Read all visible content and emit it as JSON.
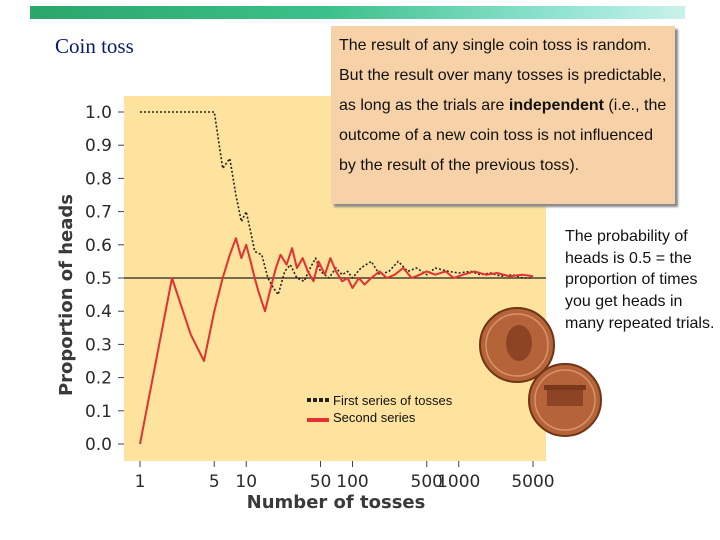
{
  "slide": {
    "title": "Coin toss",
    "info_before": "The result of any single coin toss is random.  But the result over many tosses is predictable, as long as the trials are ",
    "info_bold": "independent",
    "info_after": " (i.e., the outcome of a new coin toss is not influenced by the result of the previous toss).",
    "side_note": "The probability of heads is 0.5 = the proportion of times you get heads in many repeated trials."
  },
  "colors": {
    "panel_background": "#fde39e",
    "first_series": "#222222",
    "second_series": "#e03232",
    "reference_line": "#222222",
    "info_box": "#f7d2a8"
  },
  "chart_data": {
    "type": "line",
    "xscale": "log",
    "xlabel": "Number of tosses",
    "ylabel": "Proportion of heads",
    "x_ticks": [
      1,
      5,
      10,
      50,
      100,
      500,
      1000,
      5000
    ],
    "y_ticks": [
      "0.0",
      "0.1",
      "0.2",
      "0.3",
      "0.4",
      "0.5",
      "0.6",
      "0.7",
      "0.8",
      "0.9",
      "1.0"
    ],
    "xlim": [
      1,
      5000
    ],
    "ylim": [
      0,
      1
    ],
    "reference_y": 0.5,
    "legend": [
      "First series of tosses",
      "Second series"
    ],
    "series": [
      {
        "name": "First series of tosses",
        "style": "dotted",
        "points": [
          [
            1,
            1.0
          ],
          [
            2,
            1.0
          ],
          [
            3,
            1.0
          ],
          [
            4,
            1.0
          ],
          [
            5,
            1.0
          ],
          [
            6,
            0.83
          ],
          [
            7,
            0.86
          ],
          [
            8,
            0.75
          ],
          [
            9,
            0.67
          ],
          [
            10,
            0.7
          ],
          [
            11,
            0.64
          ],
          [
            12,
            0.58
          ],
          [
            14,
            0.57
          ],
          [
            16,
            0.5
          ],
          [
            18,
            0.47
          ],
          [
            20,
            0.45
          ],
          [
            23,
            0.52
          ],
          [
            26,
            0.54
          ],
          [
            30,
            0.5
          ],
          [
            35,
            0.49
          ],
          [
            40,
            0.53
          ],
          [
            45,
            0.56
          ],
          [
            50,
            0.52
          ],
          [
            60,
            0.5
          ],
          [
            70,
            0.53
          ],
          [
            80,
            0.51
          ],
          [
            90,
            0.52
          ],
          [
            100,
            0.5
          ],
          [
            120,
            0.53
          ],
          [
            150,
            0.55
          ],
          [
            180,
            0.51
          ],
          [
            220,
            0.52
          ],
          [
            270,
            0.55
          ],
          [
            330,
            0.52
          ],
          [
            400,
            0.53
          ],
          [
            500,
            0.51
          ],
          [
            600,
            0.53
          ],
          [
            800,
            0.52
          ],
          [
            1000,
            0.515
          ],
          [
            1300,
            0.52
          ],
          [
            1600,
            0.51
          ],
          [
            2000,
            0.515
          ],
          [
            2500,
            0.505
          ],
          [
            3200,
            0.51
          ],
          [
            4000,
            0.5
          ],
          [
            5000,
            0.5
          ]
        ]
      },
      {
        "name": "Second series",
        "style": "solid",
        "points": [
          [
            1,
            0.0
          ],
          [
            2,
            0.5
          ],
          [
            3,
            0.33
          ],
          [
            4,
            0.25
          ],
          [
            5,
            0.4
          ],
          [
            6,
            0.5
          ],
          [
            7,
            0.57
          ],
          [
            8,
            0.62
          ],
          [
            9,
            0.56
          ],
          [
            10,
            0.6
          ],
          [
            11,
            0.55
          ],
          [
            12,
            0.5
          ],
          [
            13,
            0.46
          ],
          [
            15,
            0.4
          ],
          [
            17,
            0.47
          ],
          [
            19,
            0.53
          ],
          [
            21,
            0.57
          ],
          [
            24,
            0.54
          ],
          [
            27,
            0.59
          ],
          [
            30,
            0.53
          ],
          [
            34,
            0.56
          ],
          [
            38,
            0.52
          ],
          [
            43,
            0.49
          ],
          [
            48,
            0.55
          ],
          [
            55,
            0.51
          ],
          [
            62,
            0.56
          ],
          [
            70,
            0.52
          ],
          [
            80,
            0.49
          ],
          [
            90,
            0.5
          ],
          [
            100,
            0.47
          ],
          [
            115,
            0.5
          ],
          [
            130,
            0.48
          ],
          [
            150,
            0.5
          ],
          [
            180,
            0.52
          ],
          [
            210,
            0.5
          ],
          [
            250,
            0.51
          ],
          [
            300,
            0.53
          ],
          [
            360,
            0.5
          ],
          [
            430,
            0.51
          ],
          [
            500,
            0.52
          ],
          [
            600,
            0.51
          ],
          [
            750,
            0.52
          ],
          [
            900,
            0.5
          ],
          [
            1100,
            0.51
          ],
          [
            1400,
            0.52
          ],
          [
            1800,
            0.51
          ],
          [
            2300,
            0.515
          ],
          [
            3000,
            0.505
          ],
          [
            4000,
            0.51
          ],
          [
            5000,
            0.505
          ]
        ]
      }
    ]
  }
}
